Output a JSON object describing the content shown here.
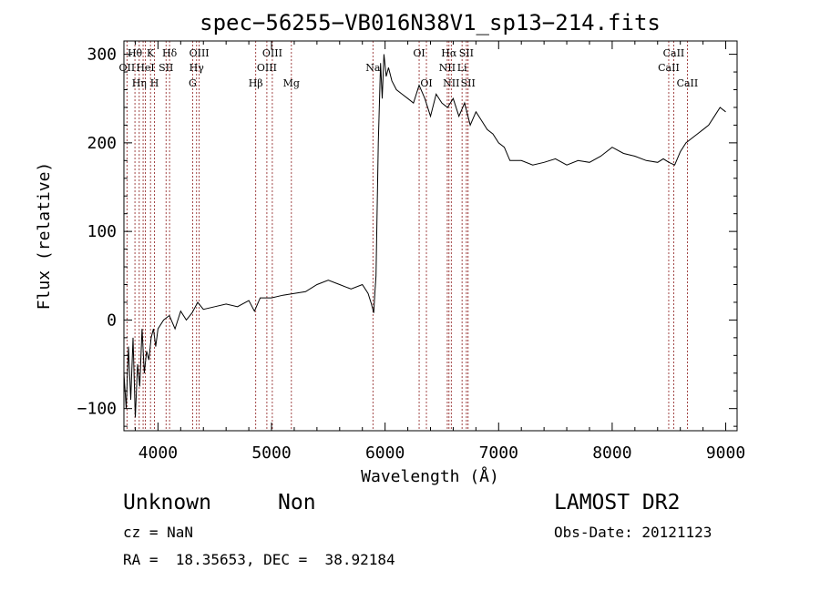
{
  "chart_data": {
    "type": "line",
    "title": "spec−56255−VB016N38V1_sp13−214.fits",
    "xlabel": "Wavelength (Å)",
    "ylabel": "Flux (relative)",
    "xlim": [
      3700,
      9100
    ],
    "ylim": [
      -125,
      315
    ],
    "xticks": [
      4000,
      5000,
      6000,
      7000,
      8000,
      9000
    ],
    "yticks": [
      -100,
      0,
      100,
      200,
      300
    ],
    "grid": false,
    "legend": "none",
    "colors": {
      "spectrum": "#000000",
      "line_markers": "#8b1a1a"
    },
    "series": [
      {
        "x": [
          3700,
          3720,
          3740,
          3760,
          3780,
          3800,
          3820,
          3840,
          3860,
          3880,
          3900,
          3920,
          3940,
          3960,
          3980,
          4000,
          4050,
          4100,
          4150,
          4200,
          4250,
          4300,
          4350,
          4400,
          4500,
          4600,
          4700,
          4800,
          4850,
          4900,
          5000,
          5100,
          5200,
          5300,
          5400,
          5500,
          5600,
          5700,
          5800,
          5850,
          5880,
          5900,
          5910,
          5920,
          5940,
          5960,
          5975,
          5990,
          6010,
          6030,
          6060,
          6100,
          6150,
          6200,
          6250,
          6300,
          6350,
          6400,
          6450,
          6500,
          6550,
          6600,
          6650,
          6700,
          6750,
          6800,
          6850,
          6900,
          6950,
          7000,
          7050,
          7100,
          7200,
          7300,
          7400,
          7500,
          7600,
          7700,
          7800,
          7900,
          8000,
          8100,
          8200,
          8300,
          8400,
          8450,
          8500,
          8550,
          8600,
          8650,
          8700,
          8750,
          8800,
          8850,
          8900,
          8950,
          9000
        ],
        "values": [
          -60,
          -100,
          -30,
          -90,
          -20,
          -110,
          -50,
          -75,
          -10,
          -60,
          -35,
          -45,
          -20,
          -10,
          -30,
          -10,
          0,
          5,
          -10,
          10,
          0,
          8,
          20,
          12,
          15,
          18,
          15,
          22,
          10,
          25,
          25,
          28,
          30,
          32,
          40,
          45,
          40,
          35,
          40,
          30,
          18,
          8,
          30,
          50,
          200,
          290,
          250,
          300,
          275,
          285,
          270,
          260,
          255,
          250,
          245,
          265,
          250,
          230,
          255,
          245,
          240,
          250,
          230,
          245,
          220,
          235,
          225,
          215,
          210,
          200,
          195,
          180,
          180,
          175,
          178,
          182,
          175,
          180,
          178,
          185,
          195,
          188,
          185,
          180,
          178,
          182,
          178,
          175,
          190,
          200,
          205,
          210,
          215,
          220,
          230,
          240,
          235
        ]
      }
    ],
    "line_markers": [
      {
        "wl": 3727,
        "label": "OII",
        "row": 1
      },
      {
        "wl": 3797,
        "label": "Hθ",
        "row": 0
      },
      {
        "wl": 3835,
        "label": "Hη",
        "row": 2
      },
      {
        "wl": 3869,
        "label": "",
        "row": -1
      },
      {
        "wl": 3889,
        "label": "HeI",
        "row": 1
      },
      {
        "wl": 3934,
        "label": "K",
        "row": 0
      },
      {
        "wl": 3969,
        "label": "H",
        "row": 2
      },
      {
        "wl": 4071,
        "label": "SII",
        "row": 1
      },
      {
        "wl": 4102,
        "label": "Hδ",
        "row": 0
      },
      {
        "wl": 4305,
        "label": "G",
        "row": 2
      },
      {
        "wl": 4340,
        "label": "Hγ",
        "row": 1
      },
      {
        "wl": 4363,
        "label": "OIII",
        "row": 0
      },
      {
        "wl": 4861,
        "label": "Hβ",
        "row": 2
      },
      {
        "wl": 4959,
        "label": "OIII",
        "row": 1
      },
      {
        "wl": 5007,
        "label": "OIII",
        "row": 0
      },
      {
        "wl": 5175,
        "label": "Mg",
        "row": 2
      },
      {
        "wl": 5893,
        "label": "Na",
        "row": 1
      },
      {
        "wl": 6300,
        "label": "OI",
        "row": 0
      },
      {
        "wl": 6364,
        "label": "OI",
        "row": 2
      },
      {
        "wl": 6548,
        "label": "NII",
        "row": 1
      },
      {
        "wl": 6563,
        "label": "Hα",
        "row": 0
      },
      {
        "wl": 6583,
        "label": "NII",
        "row": 2
      },
      {
        "wl": 6678,
        "label": "Li",
        "row": 1
      },
      {
        "wl": 6716,
        "label": "SII",
        "row": 0
      },
      {
        "wl": 6731,
        "label": "SII",
        "row": 2
      },
      {
        "wl": 8498,
        "label": "CaII",
        "row": 1
      },
      {
        "wl": 8542,
        "label": "CaII",
        "row": 0
      },
      {
        "wl": 8662,
        "label": "CaII",
        "row": 2
      }
    ]
  },
  "info": {
    "object_type": "Unknown",
    "subclass": "Non",
    "survey": "LAMOST DR2",
    "cz": "cz = NaN",
    "obs_date": "Obs-Date: 20121123",
    "coords": "RA =  18.35653, DEC =  38.92184"
  }
}
